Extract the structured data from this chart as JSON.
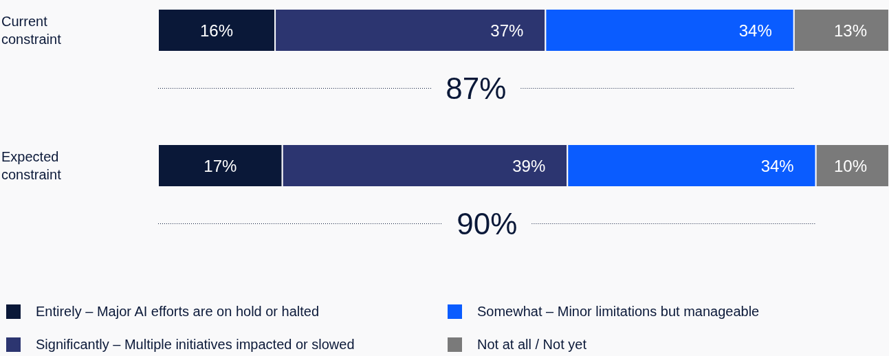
{
  "chart_data": {
    "type": "bar",
    "orientation": "horizontal",
    "stacked": true,
    "categories": [
      "Current constraint",
      "Expected constraint"
    ],
    "series": [
      {
        "name": "Entirely – Major AI efforts are on hold or halted",
        "color": "#0a1838",
        "values": [
          16,
          17
        ],
        "value_labels": [
          "16%",
          "17%"
        ]
      },
      {
        "name": "Significantly – Multiple initiatives impacted or slowed",
        "color": "#2c3570",
        "values": [
          37,
          39
        ],
        "value_labels": [
          "37%",
          "39%"
        ]
      },
      {
        "name": "Somewhat – Minor limitations but manageable",
        "color": "#0a5cff",
        "values": [
          34,
          34
        ],
        "value_labels": [
          "34%",
          "34%"
        ]
      },
      {
        "name": "Not at all / Not yet",
        "color": "#7a7a7a",
        "values": [
          13,
          10
        ],
        "value_labels": [
          "13%",
          "10%"
        ]
      }
    ],
    "annotations": [
      "87%",
      "90%"
    ],
    "legend": "bottom"
  }
}
